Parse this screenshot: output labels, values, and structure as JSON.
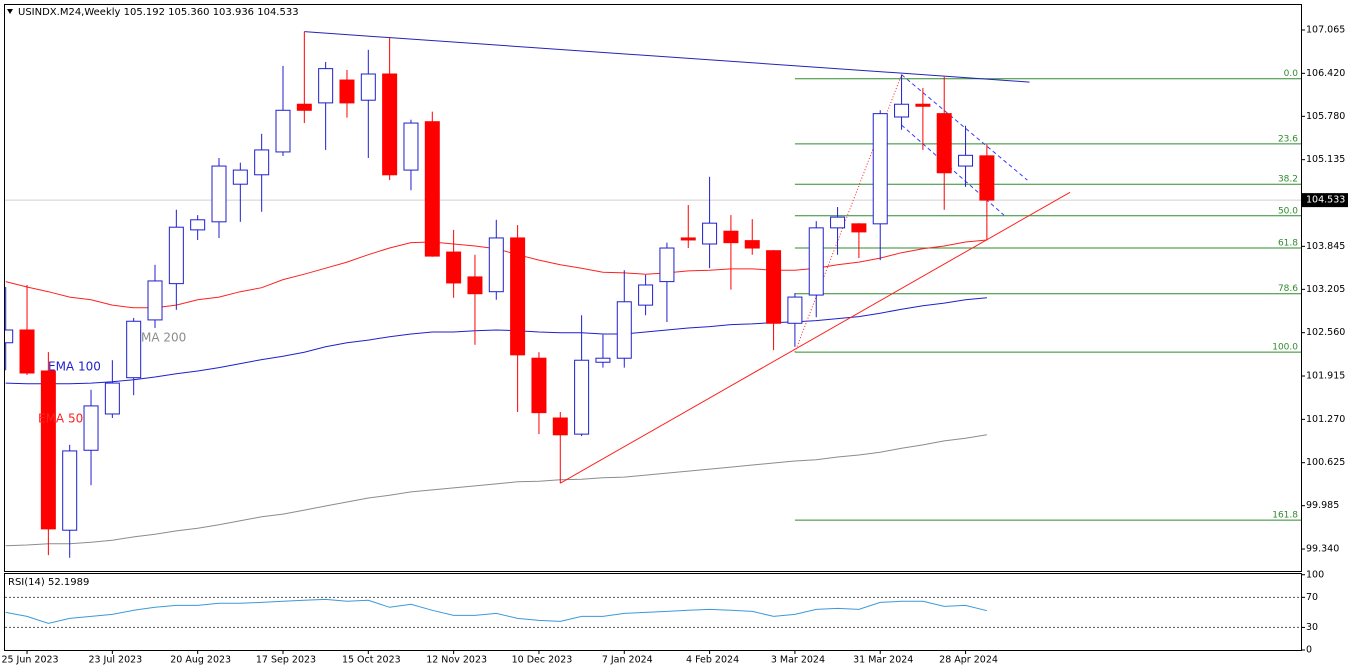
{
  "chart_data": {
    "type": "candlestick",
    "title": "USINDX.M24,Weekly  105.192 105.360 103.936 104.533",
    "categories": [
      null,
      "25 Jun 2023",
      null,
      null,
      null,
      "23 Jul 2023",
      null,
      null,
      null,
      "20 Aug 2023",
      null,
      null,
      null,
      "17 Sep 2023",
      null,
      null,
      null,
      "15 Oct 2023",
      null,
      null,
      null,
      "12 Nov 2023",
      null,
      null,
      null,
      "10 Dec 2023",
      null,
      null,
      null,
      "7 Jan 2024",
      null,
      null,
      null,
      "4 Feb 2024",
      null,
      null,
      null,
      "3 Mar 2024",
      null,
      null,
      null,
      "31 Mar 2024",
      null,
      null,
      null,
      "28 Apr 2024",
      null
    ],
    "open": [
      102.41,
      102.6,
      101.99,
      99.62,
      100.81,
      101.35,
      101.89,
      102.75,
      103.29,
      104.09,
      104.21,
      104.77,
      104.91,
      105.25,
      105.96,
      105.98,
      106.32,
      106.02,
      106.41,
      104.98,
      105.7,
      103.76,
      103.39,
      103.17,
      103.97,
      102.18,
      101.29,
      101.05,
      102.12,
      102.18,
      102.97,
      103.32,
      103.97,
      103.88,
      104.07,
      103.93,
      103.78,
      102.7,
      103.12,
      104.12,
      104.18,
      104.18,
      105.77,
      105.96,
      105.82,
      105.04,
      105.192
    ],
    "high": [
      103.24,
      103.27,
      102.27,
      100.89,
      101.71,
      102.15,
      102.78,
      103.57,
      104.39,
      104.31,
      105.16,
      105.09,
      105.52,
      106.53,
      107.04,
      106.59,
      106.47,
      106.77,
      106.95,
      105.73,
      105.85,
      104.09,
      103.72,
      104.24,
      104.16,
      102.27,
      101.38,
      102.82,
      102.53,
      103.49,
      103.42,
      103.9,
      104.46,
      104.88,
      104.31,
      104.25,
      103.79,
      103.15,
      104.22,
      104.43,
      104.19,
      105.87,
      106.4,
      106.2,
      106.37,
      105.64,
      105.36
    ],
    "low": [
      102.0,
      101.93,
      99.25,
      99.21,
      100.29,
      101.29,
      101.63,
      102.63,
      102.9,
      103.94,
      103.97,
      104.21,
      104.36,
      105.19,
      105.68,
      105.28,
      105.76,
      105.16,
      104.83,
      104.68,
      103.69,
      103.08,
      102.38,
      103.05,
      101.38,
      101.05,
      100.32,
      101.02,
      102.04,
      102.04,
      102.82,
      102.72,
      103.82,
      103.52,
      103.2,
      103.72,
      102.3,
      102.35,
      102.79,
      103.72,
      103.67,
      103.64,
      105.58,
      105.28,
      104.39,
      104.73,
      103.936
    ],
    "close": [
      102.6,
      101.96,
      99.64,
      100.8,
      101.47,
      101.81,
      102.73,
      103.33,
      104.13,
      104.24,
      105.04,
      104.98,
      105.28,
      105.87,
      105.87,
      106.49,
      105.98,
      106.41,
      104.91,
      105.68,
      103.7,
      103.3,
      103.14,
      103.97,
      102.23,
      101.37,
      101.04,
      102.15,
      102.18,
      103.02,
      103.27,
      103.82,
      103.94,
      104.19,
      103.9,
      103.82,
      102.7,
      103.09,
      104.12,
      104.28,
      104.06,
      105.82,
      105.96,
      105.93,
      104.94,
      105.2,
      104.533
    ],
    "up_color": "#ffffff",
    "up_border": "#1f1fd0",
    "down_color": "#ff0000",
    "ylim": [
      99.013,
      107.437
    ],
    "yticks": [
      107.065,
      {
        "value": 106.42,
        "label": "106.420"
      },
      {
        "value": 105.78,
        "label": "105.780"
      },
      105.135,
      103.845,
      103.205,
      {
        "value": 102.56,
        "label": "102.560"
      },
      101.915,
      {
        "value": 101.27,
        "label": "101.270"
      },
      100.625,
      99.985,
      {
        "value": 99.34,
        "label": "99.340"
      }
    ],
    "last_price": 104.533,
    "moving_averages": [
      {
        "name": "EMA 50",
        "color": "#ff2020",
        "values": [
          103.32,
          103.24,
          103.17,
          103.09,
          103.05,
          102.97,
          102.93,
          102.93,
          102.97,
          103.05,
          103.09,
          103.17,
          103.23,
          103.35,
          103.43,
          103.52,
          103.61,
          103.72,
          103.82,
          103.9,
          103.91,
          103.88,
          103.85,
          103.81,
          103.72,
          103.64,
          103.57,
          103.52,
          103.46,
          103.45,
          103.43,
          103.45,
          103.48,
          103.49,
          103.51,
          103.51,
          103.49,
          103.49,
          103.52,
          103.57,
          103.61,
          103.67,
          103.75,
          103.81,
          103.85,
          103.91,
          103.94
        ]
      },
      {
        "name": "EMA 100",
        "color": "#1f1fd0",
        "values": [
          101.81,
          101.8,
          101.8,
          101.8,
          101.81,
          101.83,
          101.86,
          101.9,
          101.95,
          101.99,
          102.04,
          102.1,
          102.16,
          102.21,
          102.27,
          102.35,
          102.41,
          102.45,
          102.5,
          102.54,
          102.57,
          102.57,
          102.59,
          102.6,
          102.59,
          102.57,
          102.56,
          102.56,
          102.54,
          102.54,
          102.57,
          102.6,
          102.63,
          102.65,
          102.68,
          102.69,
          102.71,
          102.72,
          102.74,
          102.77,
          102.8,
          102.85,
          102.91,
          102.96,
          103.0,
          103.05,
          103.08
        ]
      },
      {
        "name": "MA 200",
        "color": "#8c8c8c",
        "values": [
          99.39,
          99.4,
          99.42,
          99.42,
          99.44,
          99.47,
          99.52,
          99.56,
          99.61,
          99.65,
          99.7,
          99.76,
          99.82,
          99.86,
          99.92,
          99.98,
          100.04,
          100.1,
          100.14,
          100.19,
          100.22,
          100.25,
          100.28,
          100.31,
          100.34,
          100.35,
          100.37,
          100.38,
          100.4,
          100.41,
          100.44,
          100.47,
          100.5,
          100.53,
          100.56,
          100.59,
          100.62,
          100.65,
          100.67,
          100.71,
          100.74,
          100.78,
          100.84,
          100.89,
          100.95,
          100.99,
          101.04
        ]
      }
    ],
    "fibonacci": {
      "color": "#2e8b2e",
      "anchor_index": 37,
      "levels": [
        {
          "label": "0.0",
          "price": 106.34
        },
        {
          "label": "23.6",
          "price": 105.37
        },
        {
          "label": "38.2",
          "price": 104.77
        },
        {
          "label": "50.0",
          "price": 104.3
        },
        {
          "label": "61.8",
          "price": 103.82
        },
        {
          "label": "78.6",
          "price": 103.14
        },
        {
          "label": "100.0",
          "price": 102.27
        },
        {
          "label": "161.8",
          "price": 99.77
        }
      ]
    },
    "trendlines": [
      {
        "color": "#2323b8",
        "style": "solid",
        "points": [
          [
            14,
            107.04
          ],
          [
            48,
            106.29
          ]
        ]
      },
      {
        "color": "#ff2020",
        "style": "solid",
        "points": [
          [
            26,
            100.32
          ],
          [
            49.9,
            104.65
          ]
        ]
      },
      {
        "color": "#3a3aff",
        "style": "dashed",
        "points": [
          [
            42,
            106.4
          ],
          [
            47.9,
            104.83
          ]
        ]
      },
      {
        "color": "#3a3aff",
        "style": "dashed",
        "points": [
          [
            42,
            105.65
          ],
          [
            46.8,
            104.31
          ]
        ]
      },
      {
        "color": "#ff2020",
        "style": "dotted",
        "points": [
          [
            37,
            102.27
          ],
          [
            42,
            106.4
          ]
        ]
      }
    ],
    "rsi": {
      "title": "RSI(14) 52.1989",
      "color": "#3a9ad9",
      "ylim": [
        0,
        101
      ],
      "yticks": [
        0,
        30,
        70,
        100
      ],
      "levels": [
        30,
        70
      ],
      "values": [
        50.0,
        44.7,
        35.3,
        42.0,
        44.7,
        47.3,
        52.7,
        56.7,
        59.3,
        59.3,
        62.0,
        62.0,
        63.3,
        64.7,
        66.0,
        67.3,
        64.7,
        66.0,
        56.7,
        60.7,
        52.7,
        46.0,
        46.0,
        48.7,
        42.0,
        39.3,
        38.0,
        44.7,
        44.7,
        48.7,
        50.0,
        51.3,
        52.7,
        54.0,
        52.7,
        51.3,
        44.7,
        47.3,
        54.0,
        55.3,
        54.0,
        63.3,
        64.7,
        64.7,
        58.0,
        59.3,
        52.2
      ]
    }
  }
}
